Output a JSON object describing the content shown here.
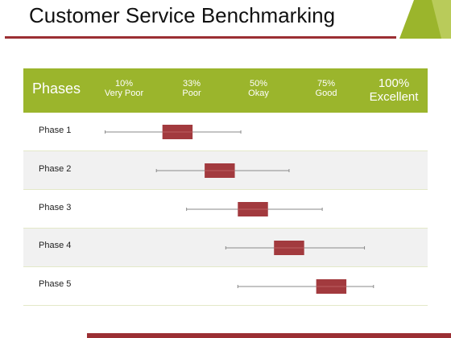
{
  "slide": {
    "title": "Customer Service Benchmarking",
    "colors": {
      "accent_green": "#9bb52c",
      "accent_red": "#9b2f33",
      "box_fill": "#a23a3e",
      "row_alt": "#f1f1f1"
    }
  },
  "header": {
    "phases_label": "Phases",
    "levels": [
      {
        "pct": "10%",
        "name": "Very Poor"
      },
      {
        "pct": "33%",
        "name": "Poor"
      },
      {
        "pct": "50%",
        "name": "Okay"
      },
      {
        "pct": "75%",
        "name": "Good"
      },
      {
        "pct": "100%",
        "name": "Excellent"
      }
    ]
  },
  "chart_data": {
    "type": "box",
    "categories": [
      "Phase 1",
      "Phase 2",
      "Phase 3",
      "Phase 4",
      "Phase 5"
    ],
    "x_scale_ticks": [
      10,
      33,
      50,
      75,
      100
    ],
    "series": [
      {
        "min": 4,
        "q1": 23,
        "q3": 33,
        "max": 49
      },
      {
        "min": 21,
        "q1": 37,
        "q3": 47,
        "max": 65
      },
      {
        "min": 31,
        "q1": 48,
        "q3": 58,
        "max": 76
      },
      {
        "min": 44,
        "q1": 60,
        "q3": 70,
        "max": 90
      },
      {
        "min": 48,
        "q1": 74,
        "q3": 84,
        "max": 93
      }
    ]
  }
}
